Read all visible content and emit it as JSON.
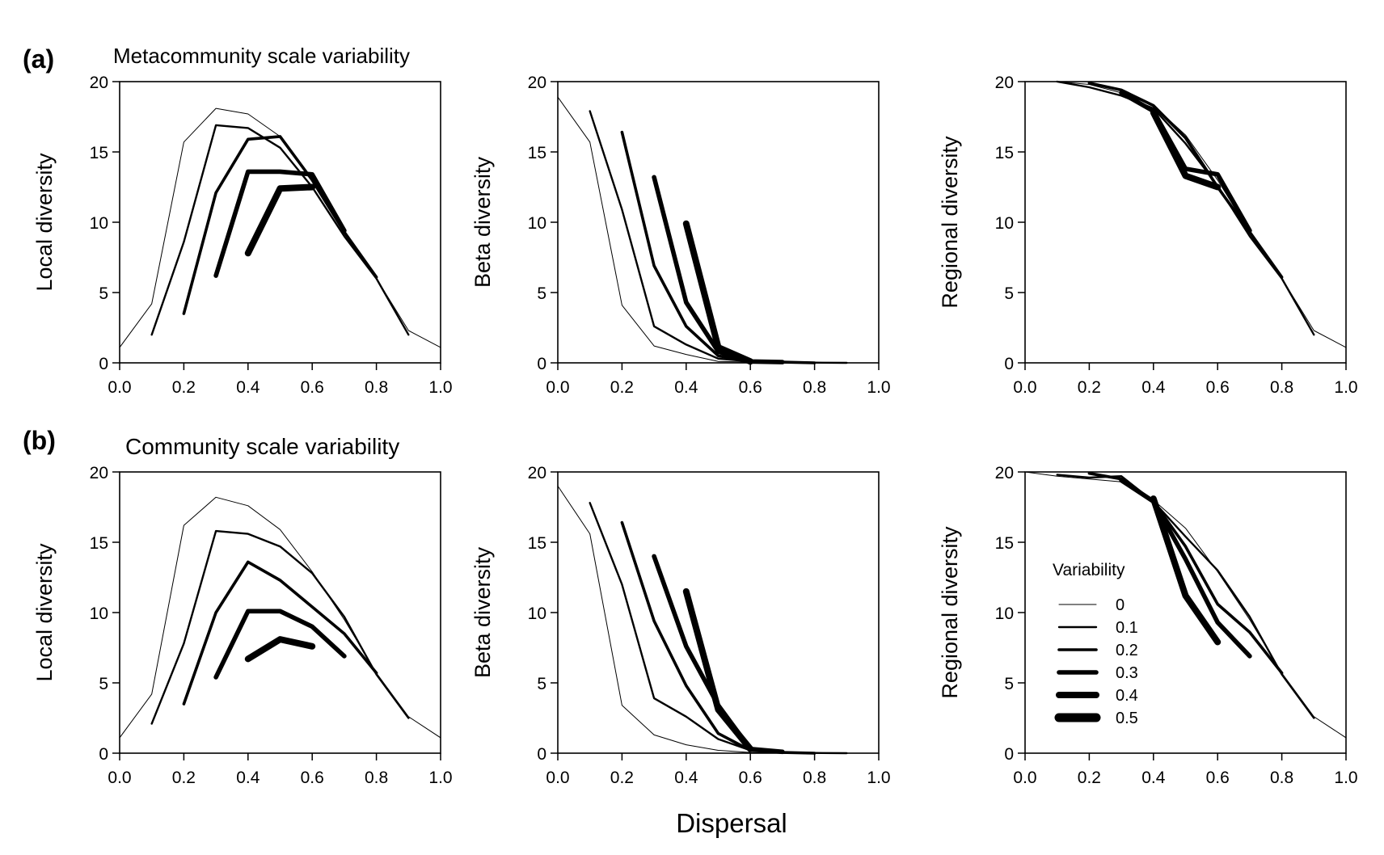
{
  "figure": {
    "xlabel_common": "Dispersal",
    "legend": {
      "title": "Variability",
      "placement": "inside bottom-left of panel (b) regional diversity",
      "entries": [
        "0",
        "0.1",
        "0.2",
        "0.3",
        "0.4",
        "0.5"
      ]
    }
  },
  "rows": [
    {
      "letter": "(a)",
      "title": "Metacommunity scale variability"
    },
    {
      "letter": "(b)",
      "title": "Community scale variability"
    }
  ],
  "chart_data": [
    {
      "type": "line",
      "panel": "a-local",
      "title": "",
      "xlabel": "",
      "ylabel": "Local diversity",
      "xlim": [
        0,
        1
      ],
      "ylim": [
        0,
        20
      ],
      "xticks": [
        "0.0",
        "0.2",
        "0.4",
        "0.6",
        "0.8",
        "1.0"
      ],
      "yticks": [
        "0",
        "5",
        "10",
        "15",
        "20"
      ],
      "grid": false,
      "series": [
        {
          "name": "0",
          "x": [
            0,
            0.1,
            0.2,
            0.3,
            0.4,
            0.5,
            0.6,
            0.7,
            0.8,
            0.9,
            1.0
          ],
          "y": [
            1.1,
            4.2,
            15.7,
            18.1,
            17.7,
            16.1,
            12.9,
            9.3,
            6.0,
            2.3,
            1.1
          ]
        },
        {
          "name": "0.1",
          "x": [
            0.1,
            0.2,
            0.3,
            0.4,
            0.5,
            0.6,
            0.7,
            0.8,
            0.9
          ],
          "y": [
            2.0,
            8.6,
            16.9,
            16.7,
            15.3,
            12.5,
            9.0,
            6.0,
            2.0
          ]
        },
        {
          "name": "0.2",
          "x": [
            0.2,
            0.3,
            0.4,
            0.5,
            0.6,
            0.7,
            0.8
          ],
          "y": [
            3.5,
            12.1,
            15.9,
            16.1,
            13.0,
            9.3,
            6.1
          ]
        },
        {
          "name": "0.3",
          "x": [
            0.3,
            0.4,
            0.5,
            0.6,
            0.7
          ],
          "y": [
            6.2,
            13.6,
            13.6,
            13.4,
            9.4
          ]
        },
        {
          "name": "0.4",
          "x": [
            0.4,
            0.5,
            0.6
          ],
          "y": [
            7.8,
            12.4,
            12.5
          ]
        }
      ]
    },
    {
      "type": "line",
      "panel": "a-beta",
      "title": "",
      "xlabel": "",
      "ylabel": "Beta diversity",
      "xlim": [
        0,
        1
      ],
      "ylim": [
        0,
        20
      ],
      "xticks": [
        "0.0",
        "0.2",
        "0.4",
        "0.6",
        "0.8",
        "1.0"
      ],
      "yticks": [
        "0",
        "5",
        "10",
        "15",
        "20"
      ],
      "grid": false,
      "series": [
        {
          "name": "0",
          "x": [
            0,
            0.1,
            0.2,
            0.3,
            0.4,
            0.5,
            0.6,
            0.7,
            0.8,
            0.9,
            1.0
          ],
          "y": [
            18.9,
            15.7,
            4.1,
            1.2,
            0.6,
            0.1,
            0.05,
            0.02,
            0.01,
            0.0,
            0.0
          ]
        },
        {
          "name": "0.1",
          "x": [
            0.1,
            0.2,
            0.3,
            0.4,
            0.5,
            0.6,
            0.7,
            0.8,
            0.9
          ],
          "y": [
            17.9,
            10.9,
            2.6,
            1.3,
            0.3,
            0.1,
            0.05,
            0.02,
            0.0
          ]
        },
        {
          "name": "0.2",
          "x": [
            0.2,
            0.3,
            0.4,
            0.5,
            0.6,
            0.7,
            0.8
          ],
          "y": [
            16.4,
            6.9,
            2.6,
            0.5,
            0.1,
            0.05,
            0.0
          ]
        },
        {
          "name": "0.3",
          "x": [
            0.3,
            0.4,
            0.5,
            0.6,
            0.7
          ],
          "y": [
            13.2,
            4.3,
            0.8,
            0.1,
            0.05
          ]
        },
        {
          "name": "0.4",
          "x": [
            0.4,
            0.5,
            0.6
          ],
          "y": [
            9.9,
            1.1,
            0.1
          ]
        }
      ]
    },
    {
      "type": "line",
      "panel": "a-regional",
      "title": "",
      "xlabel": "",
      "ylabel": "Regional diversity",
      "xlim": [
        0,
        1
      ],
      "ylim": [
        0,
        20
      ],
      "xticks": [
        "0.0",
        "0.2",
        "0.4",
        "0.6",
        "0.8",
        "1.0"
      ],
      "yticks": [
        "0",
        "5",
        "10",
        "15",
        "20"
      ],
      "grid": false,
      "series": [
        {
          "name": "0",
          "x": [
            0,
            0.1,
            0.2,
            0.3,
            0.4,
            0.5,
            0.6,
            0.7,
            0.8,
            0.9,
            1.0
          ],
          "y": [
            20.0,
            20.0,
            19.8,
            19.2,
            18.3,
            16.2,
            13.0,
            9.3,
            6.0,
            2.3,
            1.1
          ]
        },
        {
          "name": "0.1",
          "x": [
            0.1,
            0.2,
            0.3,
            0.4,
            0.5,
            0.6,
            0.7,
            0.8,
            0.9
          ],
          "y": [
            20.0,
            19.6,
            19.0,
            18.1,
            15.6,
            12.6,
            9.0,
            6.0,
            2.0
          ]
        },
        {
          "name": "0.2",
          "x": [
            0.2,
            0.3,
            0.4,
            0.5,
            0.6,
            0.7,
            0.8
          ],
          "y": [
            19.9,
            19.4,
            18.3,
            16.0,
            12.5,
            9.3,
            6.1
          ]
        },
        {
          "name": "0.3",
          "x": [
            0.3,
            0.4,
            0.5,
            0.6,
            0.7
          ],
          "y": [
            19.2,
            17.9,
            13.8,
            13.4,
            9.4
          ]
        },
        {
          "name": "0.4",
          "x": [
            0.4,
            0.5,
            0.6
          ],
          "y": [
            17.8,
            13.3,
            12.5
          ]
        }
      ]
    },
    {
      "type": "line",
      "panel": "b-local",
      "title": "",
      "xlabel": "",
      "ylabel": "Local diversity",
      "xlim": [
        0,
        1
      ],
      "ylim": [
        0,
        20
      ],
      "xticks": [
        "0.0",
        "0.2",
        "0.4",
        "0.6",
        "0.8",
        "1.0"
      ],
      "yticks": [
        "0",
        "5",
        "10",
        "15",
        "20"
      ],
      "grid": false,
      "series": [
        {
          "name": "0",
          "x": [
            0,
            0.1,
            0.2,
            0.3,
            0.4,
            0.5,
            0.6,
            0.7,
            0.8,
            0.9,
            1.0
          ],
          "y": [
            1.1,
            4.2,
            16.2,
            18.2,
            17.6,
            15.9,
            12.9,
            9.5,
            5.7,
            2.6,
            1.1
          ]
        },
        {
          "name": "0.1",
          "x": [
            0.1,
            0.2,
            0.3,
            0.4,
            0.5,
            0.6,
            0.7,
            0.8,
            0.9
          ],
          "y": [
            2.1,
            7.8,
            15.8,
            15.6,
            14.7,
            12.8,
            9.7,
            5.6,
            2.5
          ]
        },
        {
          "name": "0.2",
          "x": [
            0.2,
            0.3,
            0.4,
            0.5,
            0.6,
            0.7,
            0.8
          ],
          "y": [
            3.5,
            10.0,
            13.6,
            12.3,
            10.4,
            8.5,
            5.7
          ]
        },
        {
          "name": "0.3",
          "x": [
            0.3,
            0.4,
            0.5,
            0.6,
            0.7
          ],
          "y": [
            5.4,
            10.1,
            10.1,
            9.0,
            6.9
          ]
        },
        {
          "name": "0.4",
          "x": [
            0.4,
            0.5,
            0.6
          ],
          "y": [
            6.7,
            8.1,
            7.6
          ]
        }
      ]
    },
    {
      "type": "line",
      "panel": "b-beta",
      "title": "",
      "xlabel": "",
      "ylabel": "Beta diversity",
      "xlim": [
        0,
        1
      ],
      "ylim": [
        0,
        20
      ],
      "xticks": [
        "0.0",
        "0.2",
        "0.4",
        "0.6",
        "0.8",
        "1.0"
      ],
      "yticks": [
        "0",
        "5",
        "10",
        "15",
        "20"
      ],
      "grid": false,
      "series": [
        {
          "name": "0",
          "x": [
            0,
            0.1,
            0.2,
            0.3,
            0.4,
            0.5,
            0.6,
            0.7,
            0.8,
            0.9,
            1.0
          ],
          "y": [
            19.0,
            15.6,
            3.4,
            1.3,
            0.6,
            0.2,
            0.05,
            0.02,
            0.01,
            0.0,
            0.0
          ]
        },
        {
          "name": "0.1",
          "x": [
            0.1,
            0.2,
            0.3,
            0.4,
            0.5,
            0.6,
            0.7,
            0.8,
            0.9
          ],
          "y": [
            17.8,
            12.0,
            3.9,
            2.6,
            1.0,
            0.2,
            0.05,
            0.02,
            0.0
          ]
        },
        {
          "name": "0.2",
          "x": [
            0.2,
            0.3,
            0.4,
            0.5,
            0.6,
            0.7,
            0.8
          ],
          "y": [
            16.4,
            9.4,
            4.8,
            1.4,
            0.2,
            0.05,
            0.0
          ]
        },
        {
          "name": "0.3",
          "x": [
            0.3,
            0.4,
            0.5,
            0.6,
            0.7
          ],
          "y": [
            14.0,
            7.6,
            3.4,
            0.3,
            0.1
          ]
        },
        {
          "name": "0.4",
          "x": [
            0.4,
            0.5,
            0.6
          ],
          "y": [
            11.5,
            3.1,
            0.3
          ]
        }
      ]
    },
    {
      "type": "line",
      "panel": "b-regional",
      "title": "",
      "xlabel": "",
      "ylabel": "Regional diversity",
      "xlim": [
        0,
        1
      ],
      "ylim": [
        0,
        20
      ],
      "xticks": [
        "0.0",
        "0.2",
        "0.4",
        "0.6",
        "0.8",
        "1.0"
      ],
      "yticks": [
        "0",
        "5",
        "10",
        "15",
        "20"
      ],
      "grid": false,
      "series": [
        {
          "name": "0",
          "x": [
            0,
            0.1,
            0.2,
            0.3,
            0.4,
            0.5,
            0.6,
            0.7,
            0.8,
            0.9,
            1.0
          ],
          "y": [
            20.0,
            19.7,
            19.5,
            19.3,
            18.0,
            16.0,
            12.9,
            9.5,
            5.7,
            2.6,
            1.1
          ]
        },
        {
          "name": "0.1",
          "x": [
            0.1,
            0.2,
            0.3,
            0.4,
            0.5,
            0.6,
            0.7,
            0.8,
            0.9
          ],
          "y": [
            19.8,
            19.6,
            19.7,
            17.9,
            15.4,
            13.0,
            9.7,
            5.6,
            2.5
          ]
        },
        {
          "name": "0.2",
          "x": [
            0.2,
            0.3,
            0.4,
            0.5,
            0.6,
            0.7,
            0.8
          ],
          "y": [
            19.9,
            19.5,
            17.9,
            14.7,
            10.6,
            8.6,
            5.7
          ]
        },
        {
          "name": "0.3",
          "x": [
            0.3,
            0.4,
            0.5,
            0.6,
            0.7
          ],
          "y": [
            19.4,
            17.9,
            13.8,
            9.3,
            6.9
          ]
        },
        {
          "name": "0.4",
          "x": [
            0.4,
            0.5,
            0.6
          ],
          "y": [
            18.1,
            11.2,
            7.9
          ]
        }
      ]
    }
  ]
}
